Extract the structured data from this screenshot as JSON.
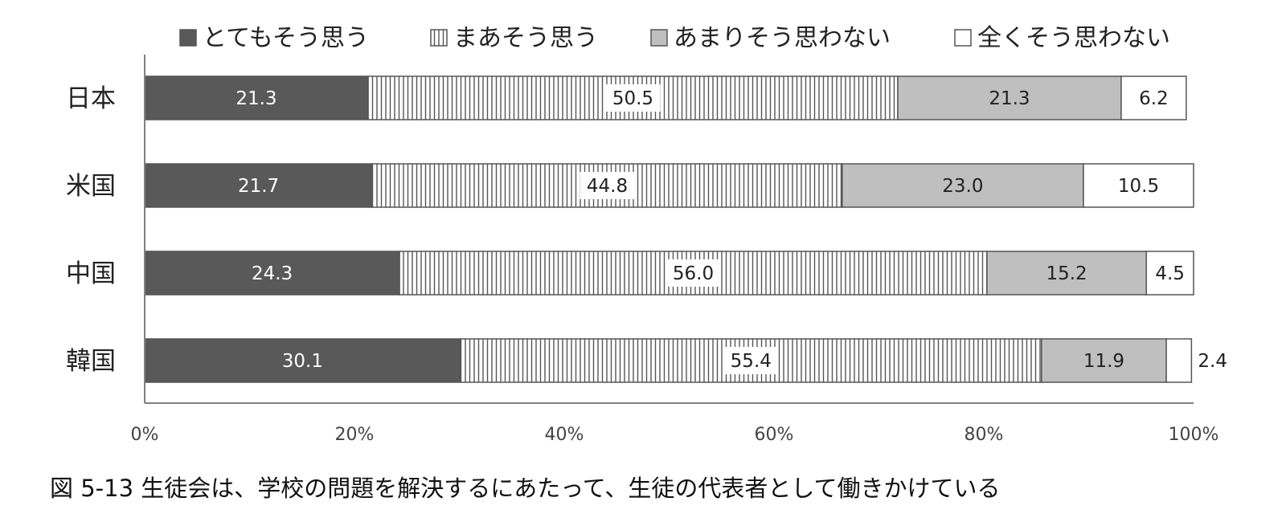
{
  "chart_data": {
    "type": "bar",
    "orientation": "horizontal",
    "stacked": true,
    "categories": [
      "日本",
      "米国",
      "中国",
      "韓国"
    ],
    "series": [
      {
        "name": "とてもそう思う",
        "values": [
          21.3,
          21.7,
          24.3,
          30.1
        ],
        "fill": "#595959"
      },
      {
        "name": "まあそう思う",
        "values": [
          50.5,
          44.8,
          56.0,
          55.4
        ],
        "fill": "vertical-stripes"
      },
      {
        "name": "あまりそう思わない",
        "values": [
          21.3,
          23.0,
          15.2,
          11.9
        ],
        "fill": "#bfbfbf"
      },
      {
        "name": "全くそう思わない",
        "values": [
          6.2,
          10.5,
          4.5,
          2.4
        ],
        "fill": "#ffffff"
      }
    ],
    "data_labels": [
      [
        "21.3",
        "21.7",
        "24.3",
        "30.1"
      ],
      [
        "50.5",
        "44.8",
        "56.0",
        "55.4"
      ],
      [
        "21.3",
        "23.0",
        "15.2",
        "11.9"
      ],
      [
        "6.2",
        "10.5",
        "4.5",
        "2.4"
      ]
    ],
    "xlim": [
      0,
      100
    ],
    "x_ticks": [
      "0%",
      "20%",
      "40%",
      "60%",
      "80%",
      "100%"
    ],
    "legend_position": "top",
    "grid": false
  },
  "caption": "図 5-13 生徒会は、学校の問題を解決するにあたって、生徒の代表者として働きかけている",
  "colors": {
    "dark": "#595959",
    "gray": "#bfbfbf",
    "border": "#555555",
    "axis": "#808080"
  }
}
